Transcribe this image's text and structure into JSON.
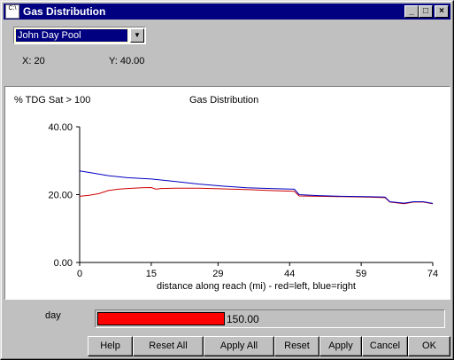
{
  "window": {
    "title": "Gas Distribution",
    "icon_text": "C:\\",
    "minimize_glyph": "_",
    "maximize_glyph": "□",
    "close_glyph": "×"
  },
  "location_select": {
    "value": "John Day Pool"
  },
  "readout": {
    "x": "X: 20",
    "y": "Y: 40.00"
  },
  "chart_data": {
    "type": "line",
    "title": "Gas Distribution",
    "ylabel": "% TDG Sat > 100",
    "xlabel": "distance along reach (mi)  -  red=left, blue=right",
    "xlim": [
      0,
      74
    ],
    "ylim": [
      0,
      40
    ],
    "x_ticks": [
      "0",
      "15",
      "29",
      "44",
      "59",
      "74"
    ],
    "y_ticks": [
      "0.00",
      "20.00",
      "40.00"
    ],
    "grid": false,
    "series": [
      {
        "name": "left",
        "color": "#d00000",
        "x": [
          0,
          2,
          4,
          6,
          8,
          10,
          13,
          15,
          16,
          17,
          20,
          25,
          30,
          35,
          40,
          45,
          46,
          50,
          55,
          60,
          64,
          65,
          68,
          70,
          72,
          74
        ],
        "y": [
          19.5,
          19.8,
          20.3,
          21.2,
          21.6,
          21.8,
          22.0,
          22.1,
          21.6,
          21.8,
          21.9,
          21.9,
          21.7,
          21.5,
          21.2,
          21.0,
          19.6,
          19.5,
          19.4,
          19.3,
          19.1,
          17.8,
          17.3,
          17.8,
          17.8,
          17.3
        ]
      },
      {
        "name": "right",
        "color": "#0000c0",
        "x": [
          0,
          3,
          6,
          10,
          15,
          20,
          25,
          30,
          35,
          40,
          45,
          46,
          50,
          55,
          60,
          64,
          65,
          68,
          70,
          72,
          74
        ],
        "y": [
          27.0,
          26.3,
          25.6,
          25.0,
          24.6,
          23.9,
          23.1,
          22.5,
          22.0,
          21.8,
          21.6,
          20.0,
          19.7,
          19.5,
          19.4,
          19.3,
          17.9,
          17.5,
          17.9,
          17.9,
          17.4
        ]
      }
    ]
  },
  "progress": {
    "label": "day",
    "value_text": "150.00",
    "fraction": 0.37,
    "fill_color": "#ff0000"
  },
  "buttons": {
    "help": "Help",
    "reset_all": "Reset All",
    "apply_all": "Apply All",
    "reset": "Reset",
    "apply": "Apply",
    "cancel": "Cancel",
    "ok": "OK"
  }
}
